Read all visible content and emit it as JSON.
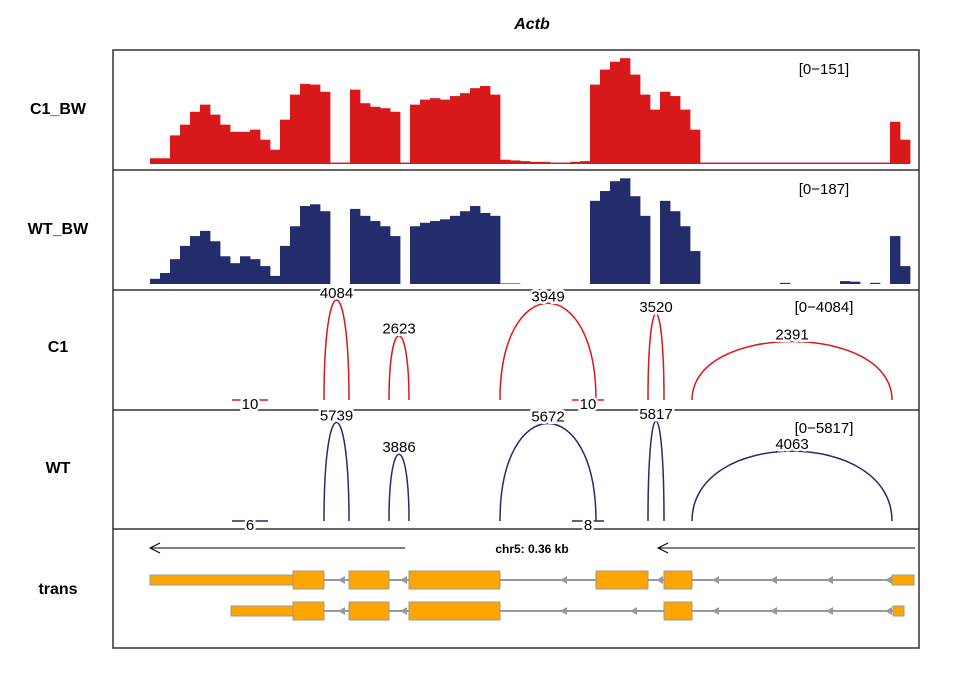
{
  "title": "Actb",
  "coverage_tracks": [
    {
      "label": "C1_BW",
      "range": {
        "value": 151,
        "label": "[0−151]"
      },
      "color": "#d7191c",
      "values": [
        8,
        8,
        40,
        55,
        73,
        83,
        69,
        55,
        45,
        45,
        48,
        34,
        20,
        62,
        97,
        112,
        111,
        101,
        2,
        2,
        104,
        85,
        80,
        78,
        73,
        2,
        83,
        90,
        92,
        90,
        95,
        99,
        106,
        109,
        97,
        6,
        5,
        4,
        3,
        3,
        2,
        2,
        3,
        4,
        111,
        132,
        143,
        148,
        125,
        97,
        76,
        101,
        95,
        76,
        48,
        2,
        2,
        2,
        2,
        2,
        2,
        2,
        2,
        2,
        2,
        2,
        2,
        2,
        2,
        2,
        2,
        2,
        2,
        2,
        59,
        34
      ]
    },
    {
      "label": "WT_BW",
      "range": {
        "value": 187,
        "label": "[0−187]"
      },
      "color": "#232d6b",
      "values": [
        9,
        19,
        43,
        66,
        83,
        92,
        74,
        48,
        36,
        48,
        43,
        31,
        14,
        66,
        100,
        135,
        138,
        126,
        0,
        0,
        130,
        118,
        109,
        100,
        83,
        0,
        100,
        106,
        109,
        112,
        118,
        126,
        135,
        123,
        118,
        1,
        1,
        0,
        0,
        0,
        0,
        0,
        0,
        0,
        144,
        161,
        178,
        183,
        152,
        118,
        0,
        144,
        126,
        100,
        57,
        0,
        0,
        0,
        0,
        0,
        0,
        0,
        0,
        2,
        0,
        0,
        0,
        0,
        0,
        5,
        4,
        0,
        2,
        0,
        83,
        31
      ]
    }
  ],
  "junction_tracks": [
    {
      "label": "C1",
      "range": {
        "value": 4084,
        "label": "[0−4084]"
      },
      "color": "#d7191c",
      "junctions": [
        4084,
        2623,
        10,
        3949,
        10,
        3520,
        2391
      ]
    },
    {
      "label": "WT",
      "range": {
        "value": 5817,
        "label": "[0−5817]"
      },
      "color": "#232d6b",
      "junctions": [
        5739,
        3886,
        6,
        5672,
        8,
        5817,
        4063
      ]
    }
  ],
  "gene_track": {
    "label": "trans",
    "scale": "chr5: 0.36 kb"
  }
}
